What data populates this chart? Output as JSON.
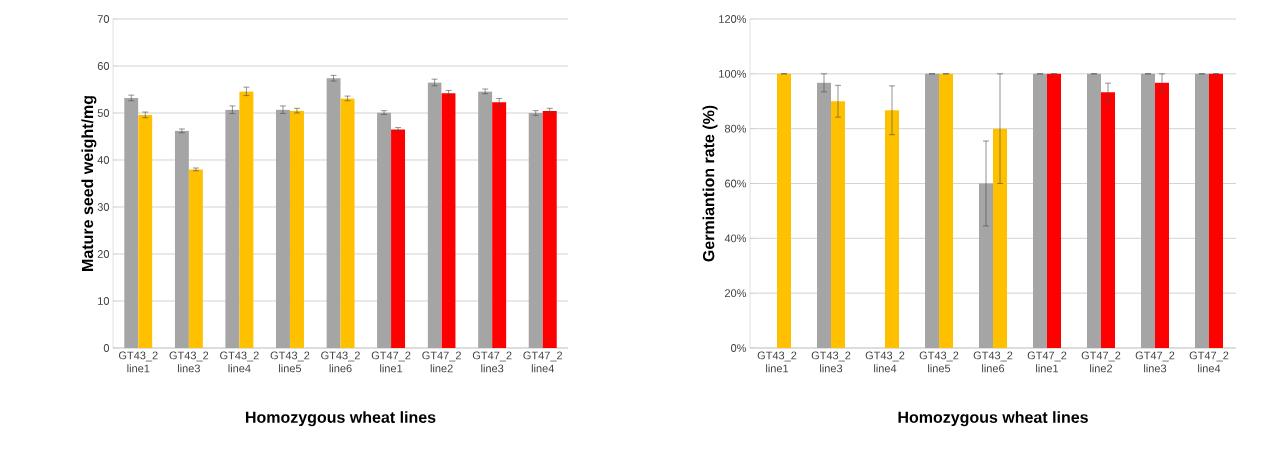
{
  "chart_data": [
    {
      "type": "bar",
      "xlabel": "Homozygous wheat lines",
      "ylabel": "Mature seed weight/mg",
      "categories": [
        "GT43_2 line1",
        "GT43_2 line3",
        "GT43_2 line4",
        "GT43_2 line5",
        "GT43_2 line6",
        "GT47_2 line1",
        "GT47_2 line2",
        "GT47_2 line3",
        "GT47_2 line4"
      ],
      "series": [
        {
          "color": "#a5a5a5",
          "values": [
            53.2,
            46.2,
            50.7,
            50.7,
            57.4,
            50.1,
            56.5,
            54.6,
            50.0
          ],
          "errors": [
            0.6,
            0.4,
            0.8,
            0.8,
            0.6,
            0.4,
            0.7,
            0.5,
            0.5
          ]
        },
        {
          "colors": [
            "#ffc000",
            "#ffc000",
            "#ffc000",
            "#ffc000",
            "#ffc000",
            "#ff0000",
            "#ff0000",
            "#ff0000",
            "#ff0000"
          ],
          "values": [
            49.6,
            38.0,
            54.6,
            50.5,
            53.1,
            46.5,
            54.2,
            52.3,
            50.4
          ],
          "errors": [
            0.6,
            0.3,
            0.9,
            0.5,
            0.5,
            0.4,
            0.6,
            0.8,
            0.6
          ]
        }
      ],
      "ylim": [
        0,
        70
      ],
      "yticks": [
        0,
        10,
        20,
        30,
        40,
        50,
        60,
        70
      ],
      "grid": "y"
    },
    {
      "type": "bar",
      "xlabel": "Homozygous wheat lines",
      "ylabel": "Germiantion rate (%)",
      "categories": [
        "GT43_2 line1",
        "GT43_2 line3",
        "GT43_2 line4",
        "GT43_2 line5",
        "GT43_2 line6",
        "GT47_2 line1",
        "GT47_2 line2",
        "GT47_2 line3",
        "GT47_2 line4"
      ],
      "series": [
        {
          "color": "#a5a5a5",
          "values": [
            null,
            96.7,
            null,
            100,
            60,
            100,
            100,
            100,
            100
          ],
          "errors": [
            null,
            3.3,
            null,
            0,
            15.5,
            0,
            0,
            0,
            0
          ]
        },
        {
          "colors": [
            "#ffc000",
            "#ffc000",
            "#ffc000",
            "#ffc000",
            "#ffc000",
            "#ff0000",
            "#ff0000",
            "#ff0000",
            "#ff0000"
          ],
          "values": [
            100,
            90,
            86.7,
            100,
            80,
            100,
            93.3,
            96.7,
            100
          ],
          "errors": [
            0,
            5.8,
            8.9,
            0,
            20,
            0,
            3.3,
            3.3,
            0
          ]
        }
      ],
      "ylim": [
        0,
        120
      ],
      "yticks": [
        {
          "value": 0,
          "label": "0%"
        },
        {
          "value": 20,
          "label": "20%"
        },
        {
          "value": 40,
          "label": "40%"
        },
        {
          "value": 60,
          "label": "60%"
        },
        {
          "value": 80,
          "label": "80%"
        },
        {
          "value": 100,
          "label": "100%"
        },
        {
          "value": 120,
          "label": "120%"
        }
      ],
      "grid": "y"
    }
  ]
}
